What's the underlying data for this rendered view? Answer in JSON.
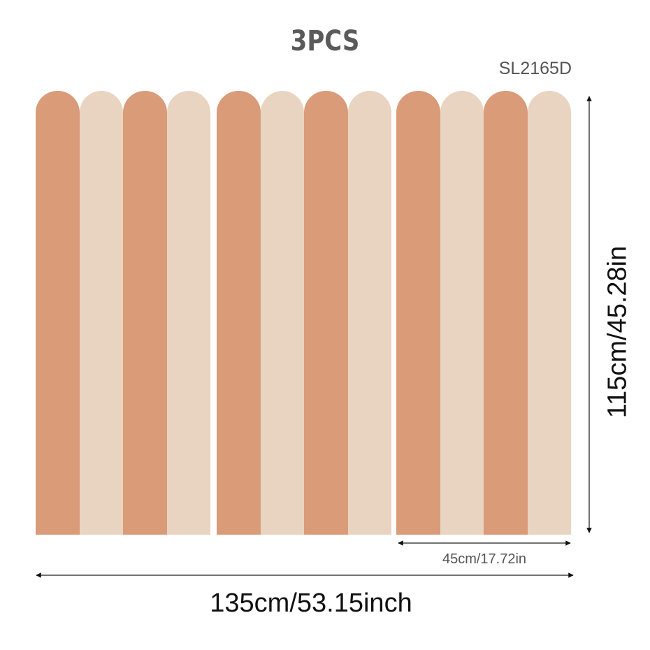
{
  "title": "3PCS",
  "model_code": "SL2165D",
  "panels": {
    "count": 3,
    "stripes_per_panel": 4,
    "stripe_colors": [
      "#D99B78",
      "#E9D4C1"
    ]
  },
  "dimensions": {
    "panel_width": "45cm/17.72in",
    "total_width": "135cm/53.15inch",
    "height": "115cm/45.28in"
  },
  "arrow_color": "#111111"
}
